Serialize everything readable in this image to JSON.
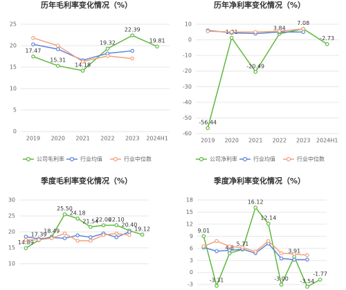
{
  "chart_data": [
    {
      "type": "line",
      "title": "历年毛利率变化情况（%）",
      "categories": [
        "2019",
        "2020",
        "2021",
        "2022",
        "2023",
        "2024H1"
      ],
      "series": [
        {
          "name": "公司毛利率",
          "color": "#5cb83a",
          "values": [
            17.47,
            15.31,
            14.18,
            19.32,
            22.39,
            19.81
          ],
          "value_labels": [
            "17.47",
            "15.31",
            "14.18",
            "19.32",
            "22.39",
            "19.81"
          ]
        },
        {
          "name": "行业均值",
          "color": "#5b83d8",
          "values": [
            20.3,
            19.2,
            16.6,
            18.2,
            18.8,
            null
          ]
        },
        {
          "name": "行业中位数",
          "color": "#f2a07b",
          "values": [
            21.8,
            20.0,
            16.3,
            17.6,
            17.0,
            null
          ]
        }
      ],
      "ylim": [
        0,
        25
      ],
      "yticks": [
        0,
        5,
        10,
        15,
        20,
        25
      ],
      "grid": true,
      "legend": "bottom"
    },
    {
      "type": "line",
      "title": "历年净利率变化情况（%）",
      "categories": [
        "2019",
        "2020",
        "2021",
        "2022",
        "2023",
        "2024H1"
      ],
      "series": [
        {
          "name": "公司净利率",
          "color": "#5cb83a",
          "values": [
            -56.44,
            1.31,
            -20.49,
            3.84,
            7.08,
            -2.73
          ],
          "value_labels": [
            "-56.44",
            "1.31",
            "-20.49",
            "3.84",
            "7.08",
            "-2.73"
          ]
        },
        {
          "name": "行业均值",
          "color": "#5b83d8",
          "values": [
            6.0,
            4.5,
            4.0,
            5.0,
            5.0,
            null
          ]
        },
        {
          "name": "行业中位数",
          "color": "#f2a07b",
          "values": [
            5.5,
            5.0,
            5.0,
            5.5,
            7.0,
            null
          ]
        }
      ],
      "ylim": [
        -60,
        10
      ],
      "yticks": [
        -60,
        -50,
        -40,
        -30,
        -20,
        -10,
        0,
        10
      ],
      "grid": true,
      "legend": "bottom"
    },
    {
      "type": "line",
      "title": "季度毛利率变化情况（%）",
      "categories": [
        null,
        null,
        null,
        null,
        null,
        null,
        null,
        null,
        null,
        null
      ],
      "series": [
        {
          "color": "#5cb83a",
          "values": [
            14.89,
            17.39,
            18.49,
            25.5,
            24.18,
            21.54,
            22.06,
            22.1,
            20.4,
            19.12
          ],
          "value_labels": [
            "14.89",
            "17.39",
            "18.49",
            "25.50",
            "24.18",
            "21.54",
            "22.06",
            "22.10",
            "20.40",
            "19.12"
          ]
        },
        {
          "color": "#5b83d8",
          "values": [
            18.5,
            17.8,
            18.2,
            18.0,
            18.9,
            18.3,
            19.5,
            18.3,
            20.0,
            null
          ]
        },
        {
          "color": "#f2a07b",
          "values": [
            17.5,
            17.5,
            18.0,
            19.5,
            17.2,
            17.2,
            19.0,
            19.5,
            19.0,
            null
          ]
        }
      ],
      "ylim": [
        10,
        30
      ],
      "yticks": [
        10,
        15,
        20,
        25,
        30
      ],
      "grid": true
    },
    {
      "type": "line",
      "title": "季度净利率变化情况（%）",
      "categories": [
        null,
        null,
        null,
        null,
        null,
        null,
        null,
        null,
        null,
        null
      ],
      "series": [
        {
          "color": "#5cb83a",
          "values": [
            9.01,
            -3.31,
            4.8,
            5.71,
            16.12,
            12.14,
            -3.0,
            3.91,
            -3.54,
            -1.77
          ],
          "value_labels": [
            "9.01",
            "-3.31",
            "4.8",
            "5.71",
            "16.12",
            "12.14",
            "-3.00",
            "3.91",
            "-3.54",
            "-1.77"
          ]
        },
        {
          "color": "#5b83d8",
          "values": [
            6.2,
            5.3,
            5.5,
            5.8,
            4.8,
            7.2,
            3.5,
            3.2,
            3.2,
            null
          ]
        },
        {
          "color": "#f2a07b",
          "values": [
            6.5,
            7.8,
            6.5,
            6.2,
            5.2,
            7.8,
            4.8,
            4.6,
            4.3,
            null
          ]
        }
      ],
      "ylim": [
        -4,
        18
      ],
      "yticks": [
        -3,
        0,
        3,
        6,
        9,
        12,
        15,
        18
      ],
      "grid": true
    }
  ]
}
